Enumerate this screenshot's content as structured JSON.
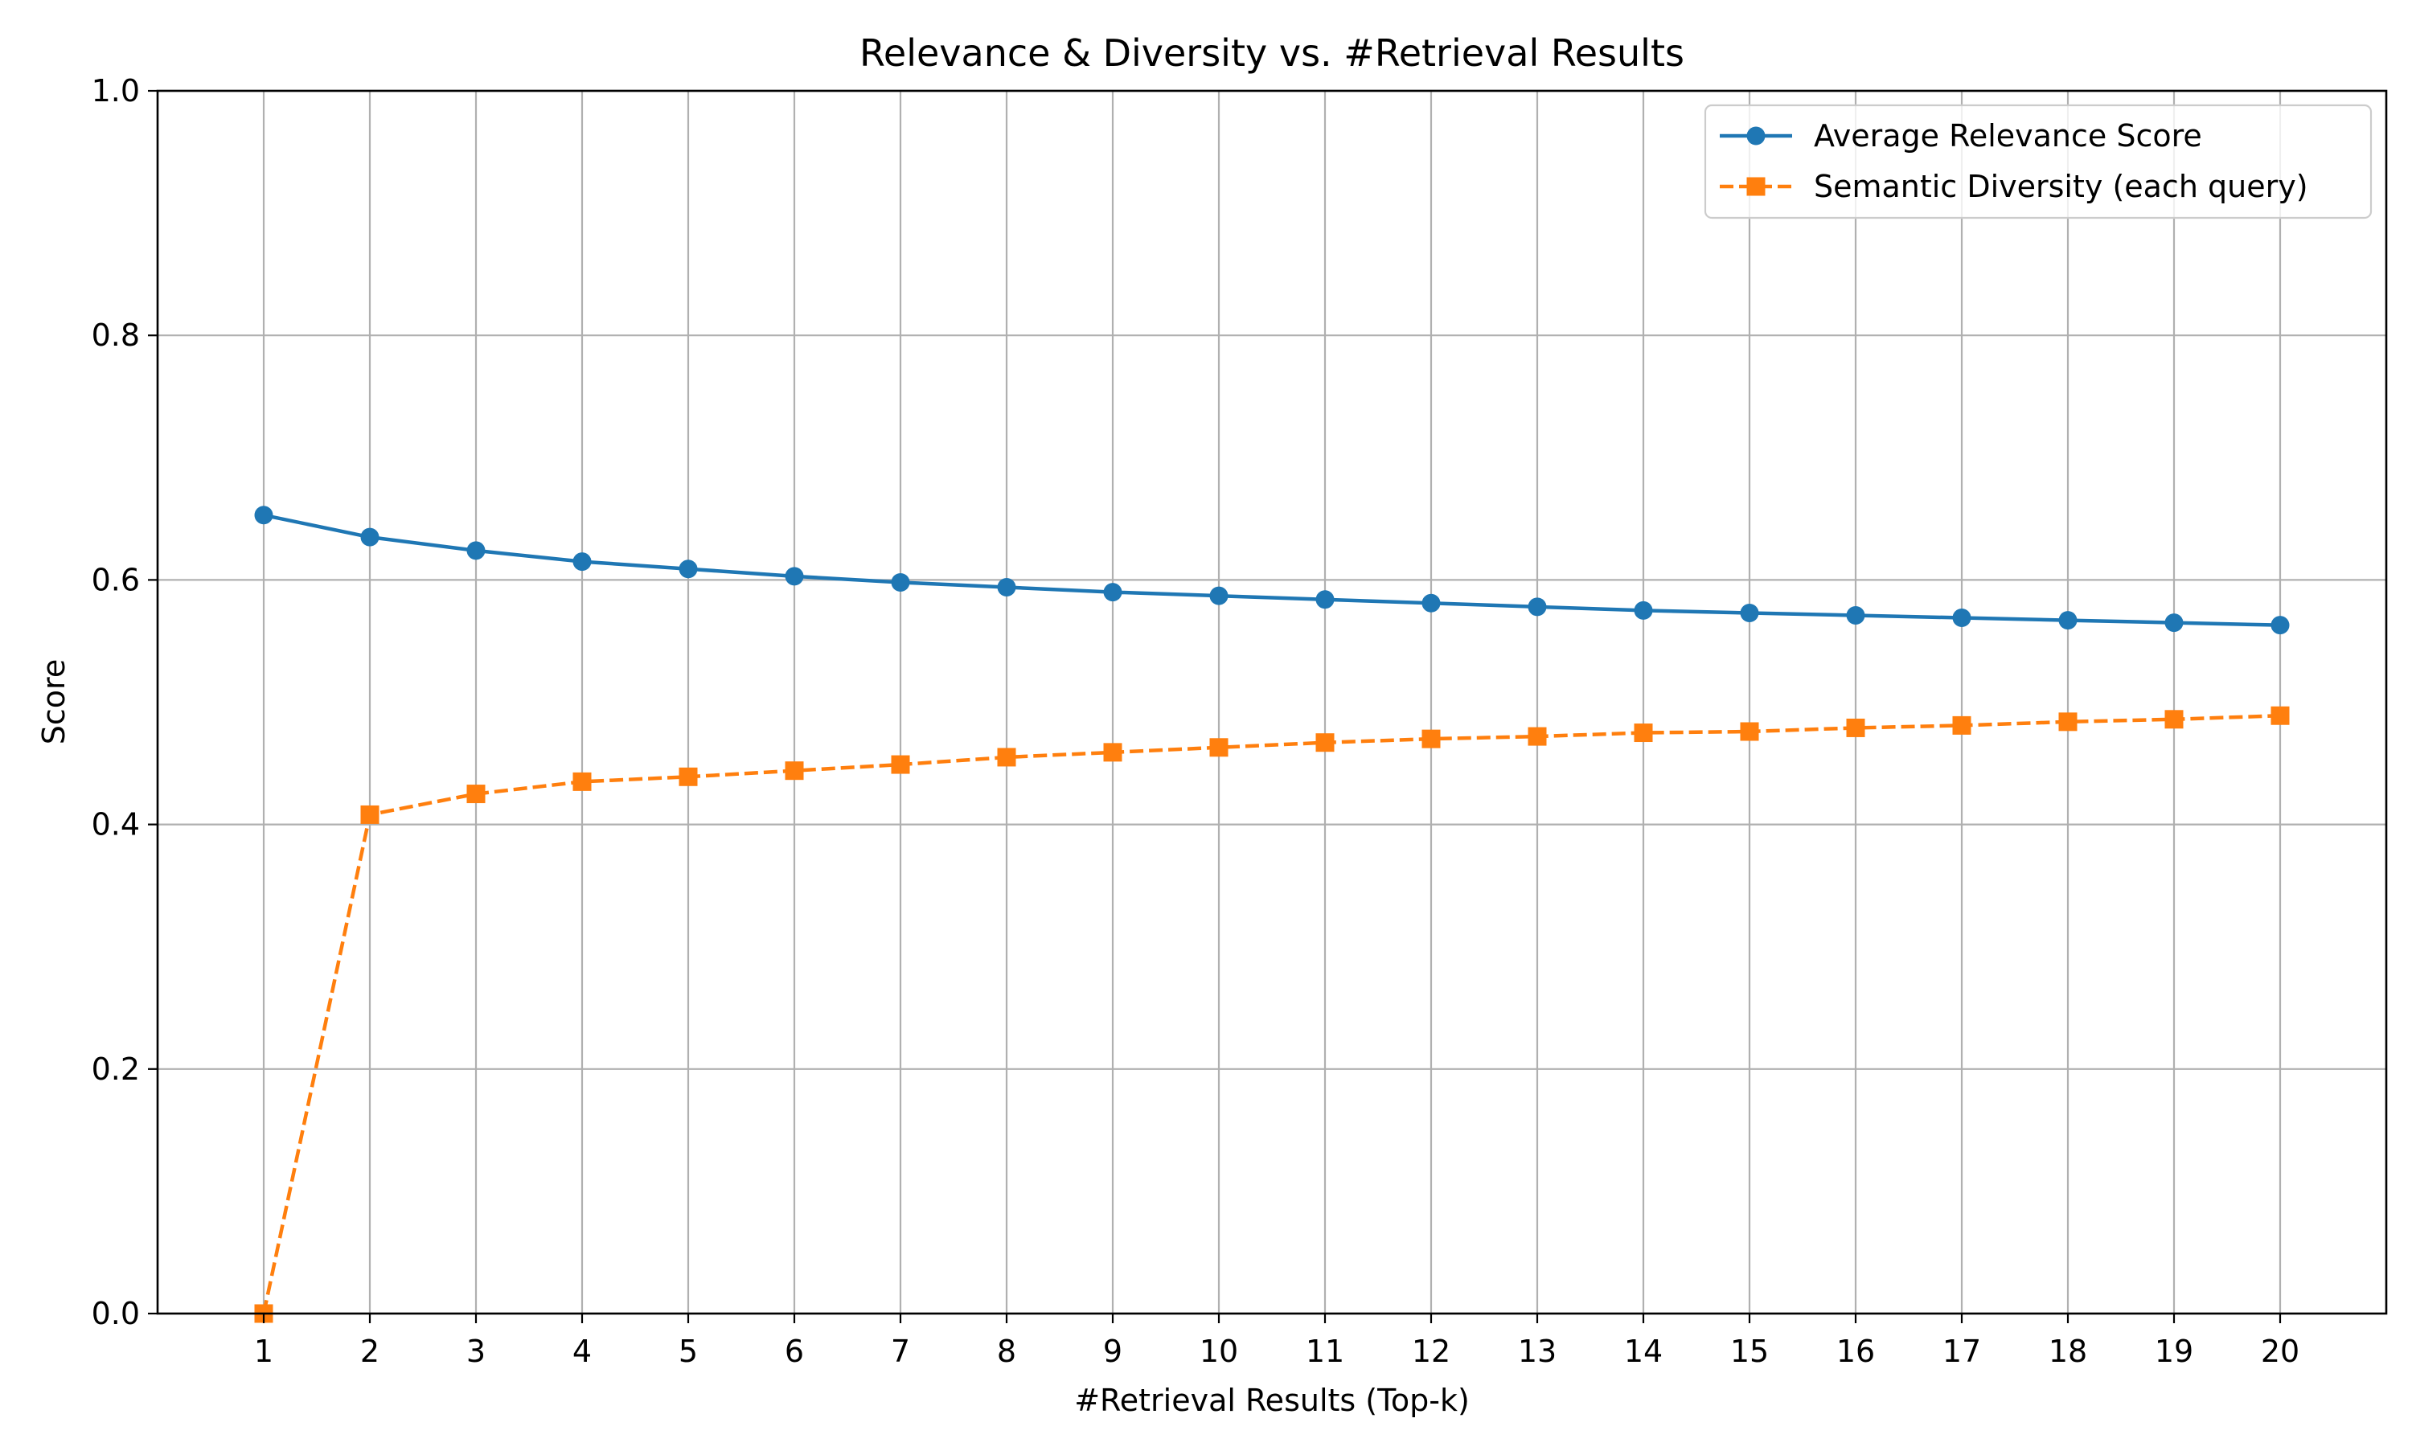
{
  "chart_data": {
    "type": "line",
    "title": "Relevance & Diversity vs. #Retrieval Results",
    "xlabel": "#Retrieval Results (Top-k)",
    "ylabel": "Score",
    "x": [
      1,
      2,
      3,
      4,
      5,
      6,
      7,
      8,
      9,
      10,
      11,
      12,
      13,
      14,
      15,
      16,
      17,
      18,
      19,
      20
    ],
    "xlim": [
      0,
      21
    ],
    "ylim": [
      0.0,
      1.0
    ],
    "y_ticks": [
      "0.0",
      "0.2",
      "0.4",
      "0.6",
      "0.8",
      "1.0"
    ],
    "x_ticks": [
      "1",
      "2",
      "3",
      "4",
      "5",
      "6",
      "7",
      "8",
      "9",
      "10",
      "11",
      "12",
      "13",
      "14",
      "15",
      "16",
      "17",
      "18",
      "19",
      "20"
    ],
    "grid": true,
    "legend_position": "top-right",
    "series": [
      {
        "name": "Average Relevance Score",
        "color": "#1f77b4",
        "marker": "circle",
        "line_style": "solid",
        "values": [
          0.653,
          0.635,
          0.624,
          0.615,
          0.609,
          0.603,
          0.598,
          0.594,
          0.59,
          0.587,
          0.584,
          0.581,
          0.578,
          0.575,
          0.573,
          0.571,
          0.569,
          0.567,
          0.565,
          0.563
        ]
      },
      {
        "name": "Semantic Diversity (each query)",
        "color": "#ff7f0e",
        "marker": "square",
        "line_style": "dashed",
        "values": [
          0.0,
          0.408,
          0.425,
          0.435,
          0.439,
          0.444,
          0.449,
          0.455,
          0.459,
          0.463,
          0.467,
          0.47,
          0.472,
          0.475,
          0.476,
          0.479,
          0.481,
          0.484,
          0.486,
          0.489
        ]
      }
    ]
  }
}
